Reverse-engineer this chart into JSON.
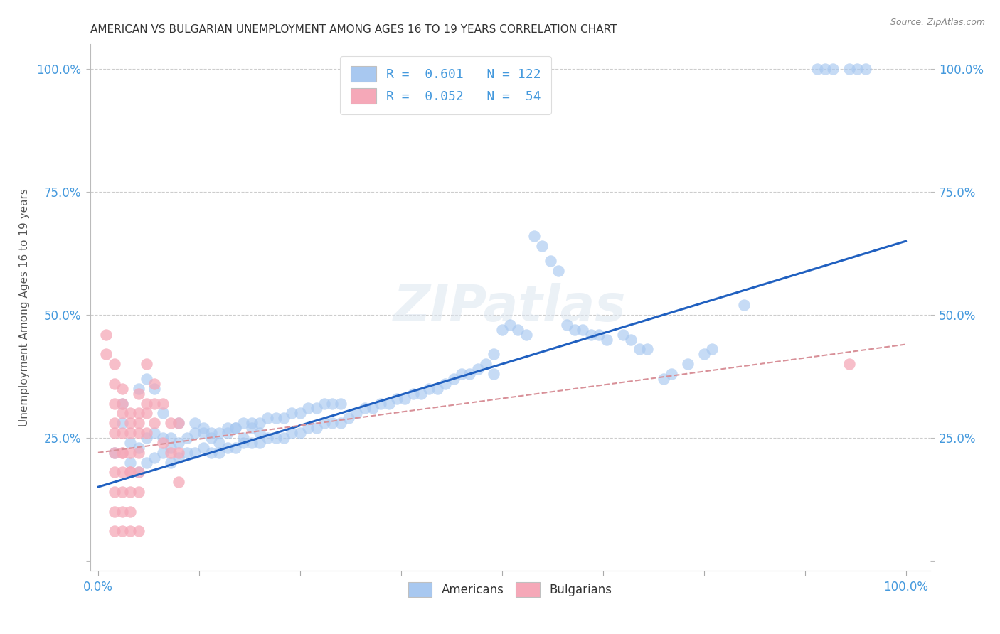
{
  "title": "AMERICAN VS BULGARIAN UNEMPLOYMENT AMONG AGES 16 TO 19 YEARS CORRELATION CHART",
  "source": "Source: ZipAtlas.com",
  "ylabel": "Unemployment Among Ages 16 to 19 years",
  "background_color": "#ffffff",
  "grid_color": "#c8c8c8",
  "american_color": "#a8c8f0",
  "bulgarian_color": "#f5a8b8",
  "american_line_color": "#2060c0",
  "bulgarian_line_color": "#d89098",
  "tick_color": "#4499dd",
  "title_color": "#333333",
  "R_american": 0.601,
  "N_american": 122,
  "R_bulgarian": 0.052,
  "N_bulgarian": 54,
  "xlim": [
    -0.01,
    1.03
  ],
  "ylim": [
    -0.02,
    1.05
  ],
  "xtick_positions": [
    0.0,
    0.125,
    0.25,
    0.375,
    0.5,
    0.625,
    0.75,
    0.875,
    1.0
  ],
  "ytick_positions": [
    0.0,
    0.25,
    0.5,
    0.75,
    1.0
  ],
  "watermark_text": "ZIPatlas",
  "legend_r_label_am": "R =  0.601   N = 122",
  "legend_r_label_bg": "R =  0.052   N =  54",
  "am_scatter_x": [
    0.02,
    0.03,
    0.04,
    0.04,
    0.05,
    0.05,
    0.06,
    0.06,
    0.07,
    0.07,
    0.08,
    0.08,
    0.09,
    0.09,
    0.1,
    0.1,
    0.11,
    0.11,
    0.12,
    0.12,
    0.13,
    0.13,
    0.14,
    0.14,
    0.15,
    0.15,
    0.16,
    0.16,
    0.17,
    0.17,
    0.18,
    0.18,
    0.19,
    0.19,
    0.2,
    0.2,
    0.21,
    0.21,
    0.22,
    0.22,
    0.23,
    0.23,
    0.24,
    0.24,
    0.25,
    0.25,
    0.26,
    0.26,
    0.27,
    0.27,
    0.28,
    0.28,
    0.29,
    0.29,
    0.3,
    0.3,
    0.31,
    0.32,
    0.33,
    0.34,
    0.35,
    0.36,
    0.37,
    0.38,
    0.39,
    0.4,
    0.41,
    0.42,
    0.43,
    0.44,
    0.45,
    0.46,
    0.47,
    0.48,
    0.49,
    0.49,
    0.5,
    0.51,
    0.52,
    0.53,
    0.54,
    0.55,
    0.56,
    0.57,
    0.58,
    0.59,
    0.6,
    0.61,
    0.62,
    0.63,
    0.65,
    0.66,
    0.67,
    0.68,
    0.7,
    0.71,
    0.73,
    0.75,
    0.76,
    0.8,
    0.89,
    0.9,
    0.91,
    0.93,
    0.94,
    0.95,
    0.03,
    0.05,
    0.06,
    0.07,
    0.08,
    0.09,
    0.1,
    0.12,
    0.13,
    0.14,
    0.15,
    0.16,
    0.17,
    0.18,
    0.19,
    0.2
  ],
  "am_scatter_y": [
    0.22,
    0.28,
    0.2,
    0.24,
    0.18,
    0.23,
    0.2,
    0.25,
    0.21,
    0.26,
    0.22,
    0.25,
    0.2,
    0.23,
    0.21,
    0.24,
    0.22,
    0.25,
    0.22,
    0.26,
    0.23,
    0.27,
    0.22,
    0.26,
    0.22,
    0.26,
    0.23,
    0.27,
    0.23,
    0.27,
    0.24,
    0.28,
    0.24,
    0.28,
    0.24,
    0.28,
    0.25,
    0.29,
    0.25,
    0.29,
    0.25,
    0.29,
    0.26,
    0.3,
    0.26,
    0.3,
    0.27,
    0.31,
    0.27,
    0.31,
    0.28,
    0.32,
    0.28,
    0.32,
    0.28,
    0.32,
    0.29,
    0.3,
    0.31,
    0.31,
    0.32,
    0.32,
    0.33,
    0.33,
    0.34,
    0.34,
    0.35,
    0.35,
    0.36,
    0.37,
    0.38,
    0.38,
    0.39,
    0.4,
    0.38,
    0.42,
    0.47,
    0.48,
    0.47,
    0.46,
    0.66,
    0.64,
    0.61,
    0.59,
    0.48,
    0.47,
    0.47,
    0.46,
    0.46,
    0.45,
    0.46,
    0.45,
    0.43,
    0.43,
    0.37,
    0.38,
    0.4,
    0.42,
    0.43,
    0.52,
    1.0,
    1.0,
    1.0,
    1.0,
    1.0,
    1.0,
    0.32,
    0.35,
    0.37,
    0.35,
    0.3,
    0.25,
    0.28,
    0.28,
    0.26,
    0.25,
    0.24,
    0.26,
    0.27,
    0.25,
    0.27,
    0.26
  ],
  "bg_scatter_x": [
    0.01,
    0.02,
    0.02,
    0.02,
    0.02,
    0.02,
    0.02,
    0.02,
    0.02,
    0.03,
    0.03,
    0.03,
    0.03,
    0.03,
    0.03,
    0.03,
    0.03,
    0.04,
    0.04,
    0.04,
    0.04,
    0.04,
    0.04,
    0.04,
    0.05,
    0.05,
    0.05,
    0.05,
    0.05,
    0.05,
    0.06,
    0.06,
    0.06,
    0.07,
    0.07,
    0.08,
    0.08,
    0.09,
    0.09,
    0.1,
    0.1,
    0.1,
    0.01,
    0.02,
    0.02,
    0.03,
    0.03,
    0.04,
    0.04,
    0.05,
    0.05,
    0.06,
    0.07,
    0.93
  ],
  "bg_scatter_y": [
    0.46,
    0.4,
    0.36,
    0.28,
    0.22,
    0.18,
    0.14,
    0.1,
    0.06,
    0.35,
    0.3,
    0.26,
    0.22,
    0.18,
    0.14,
    0.1,
    0.06,
    0.3,
    0.26,
    0.22,
    0.18,
    0.14,
    0.1,
    0.06,
    0.34,
    0.3,
    0.26,
    0.22,
    0.18,
    0.06,
    0.4,
    0.32,
    0.26,
    0.36,
    0.28,
    0.32,
    0.24,
    0.28,
    0.22,
    0.28,
    0.22,
    0.16,
    0.42,
    0.32,
    0.26,
    0.32,
    0.22,
    0.28,
    0.18,
    0.28,
    0.14,
    0.3,
    0.32,
    0.4
  ],
  "am_trend_x": [
    0.0,
    1.0
  ],
  "am_trend_y": [
    0.15,
    0.65
  ],
  "bg_trend_x": [
    0.0,
    1.0
  ],
  "bg_trend_y": [
    0.22,
    0.44
  ]
}
